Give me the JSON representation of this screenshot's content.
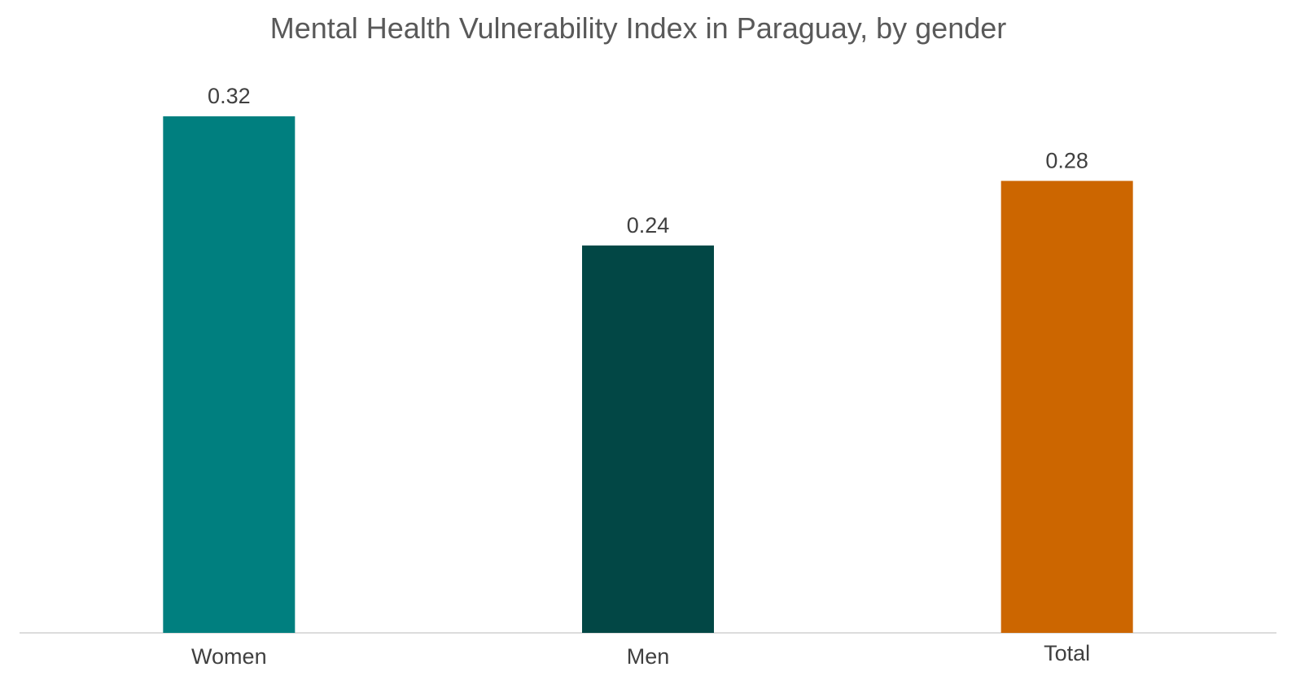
{
  "chart_data": {
    "type": "bar",
    "title": "Mental Health Vulnerability Index in Paraguay, by gender",
    "xlabel": "",
    "ylabel": "",
    "categories": [
      "Women",
      "Men",
      "Total"
    ],
    "values": [
      0.32,
      0.24,
      0.28
    ],
    "data_labels": [
      "0.32",
      "0.24",
      "0.28"
    ],
    "colors": [
      "#007f7f",
      "#024745",
      "#cc6600"
    ],
    "ylim": [
      0,
      0.32
    ],
    "grid": false,
    "legend": "none"
  }
}
